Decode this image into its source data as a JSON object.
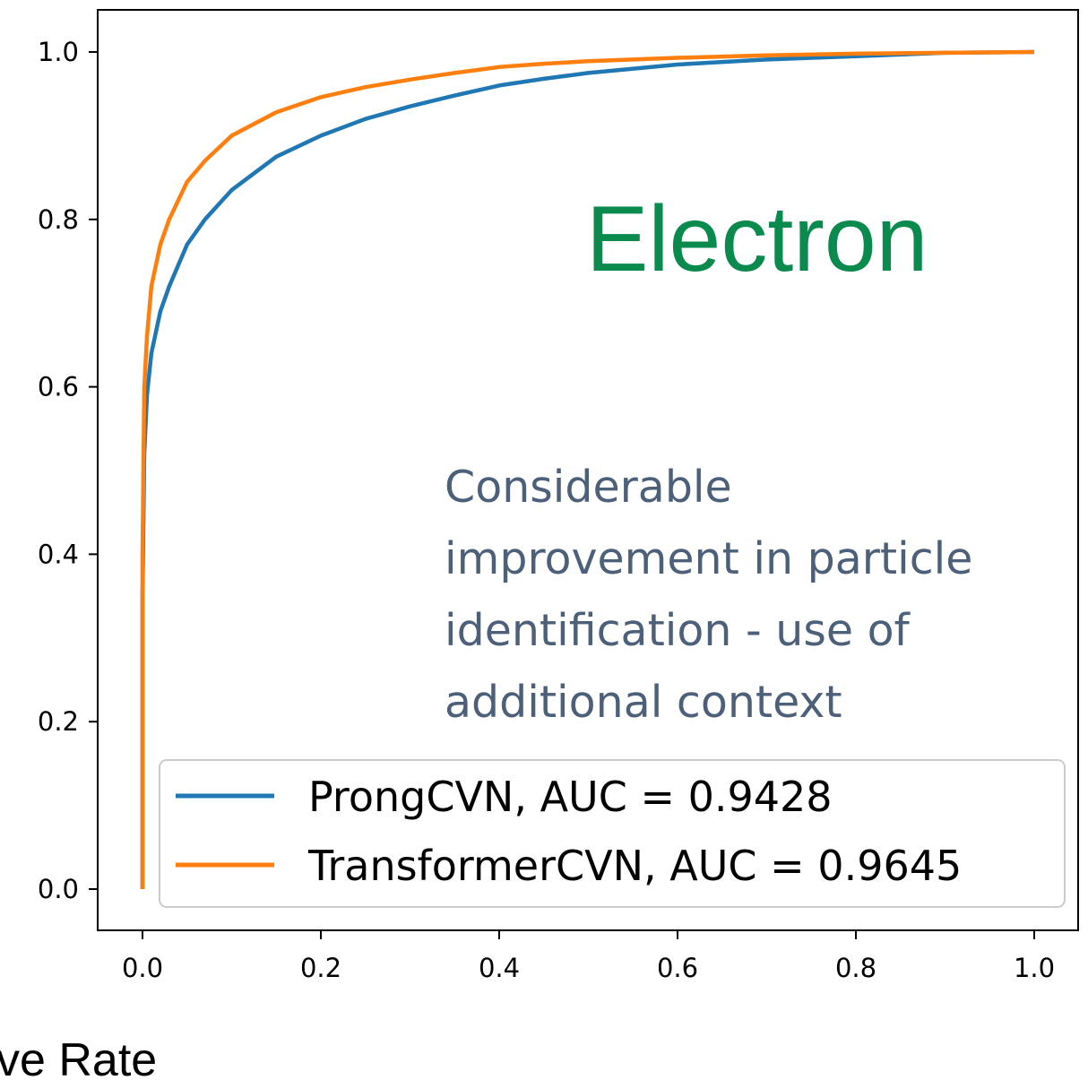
{
  "chart_data": {
    "type": "line",
    "title": "",
    "xlabel": "ve Rate",
    "ylabel": "",
    "xlim": [
      -0.05,
      1.05
    ],
    "ylim": [
      -0.05,
      1.05
    ],
    "xticks": [
      "0.0",
      "0.2",
      "0.4",
      "0.6",
      "0.8",
      "1.0"
    ],
    "yticks": [
      "0.0",
      "0.2",
      "0.4",
      "0.6",
      "0.8",
      "1.0"
    ],
    "grid": false,
    "legend_position": "bottom-right",
    "series": [
      {
        "name": "ProngCVN, AUC = 0.9428",
        "color": "#1f77b4",
        "x": [
          0.0,
          0.0,
          0.002,
          0.005,
          0.01,
          0.02,
          0.03,
          0.05,
          0.07,
          0.1,
          0.15,
          0.2,
          0.25,
          0.3,
          0.35,
          0.4,
          0.45,
          0.5,
          0.6,
          0.7,
          0.8,
          0.9,
          1.0
        ],
        "y": [
          0.0,
          0.35,
          0.52,
          0.59,
          0.64,
          0.69,
          0.72,
          0.77,
          0.8,
          0.835,
          0.875,
          0.9,
          0.92,
          0.935,
          0.948,
          0.96,
          0.968,
          0.975,
          0.985,
          0.991,
          0.995,
          0.999,
          1.0
        ]
      },
      {
        "name": "TransformerCVN, AUC = 0.9645",
        "color": "#ff7f0e",
        "x": [
          0.0,
          0.0,
          0.002,
          0.005,
          0.01,
          0.02,
          0.03,
          0.05,
          0.07,
          0.1,
          0.15,
          0.2,
          0.25,
          0.3,
          0.35,
          0.4,
          0.45,
          0.5,
          0.6,
          0.7,
          0.8,
          0.9,
          1.0
        ],
        "y": [
          0.0,
          0.4,
          0.6,
          0.66,
          0.72,
          0.77,
          0.8,
          0.845,
          0.87,
          0.9,
          0.928,
          0.946,
          0.958,
          0.967,
          0.975,
          0.982,
          0.986,
          0.989,
          0.993,
          0.996,
          0.998,
          0.999,
          1.0
        ]
      }
    ],
    "annotations": {
      "title": "Electron",
      "text_lines": [
        "Considerable",
        "improvement in particle",
        "identification - use of",
        "additional context"
      ]
    },
    "colors": {
      "annotation_title": "#0a8a4c",
      "annotation_text": "#4d6079"
    }
  }
}
